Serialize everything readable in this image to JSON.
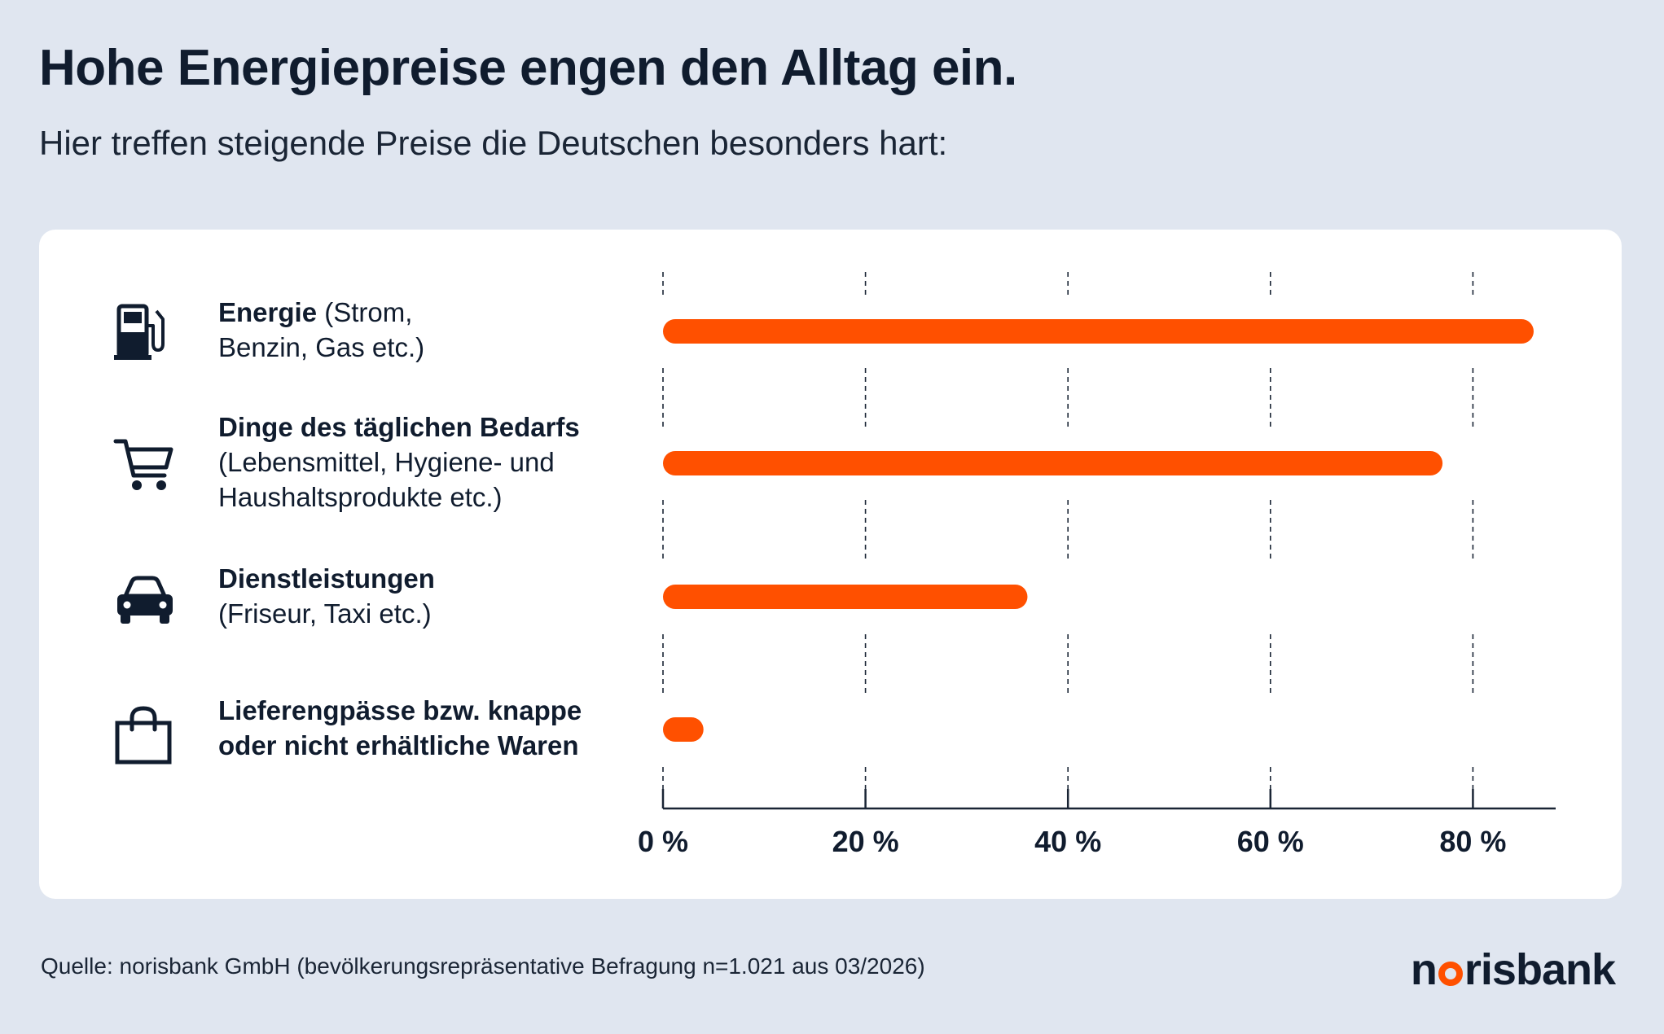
{
  "header": {
    "title": "Hohe Energiepreise engen den Alltag ein.",
    "subtitle": "Hier treffen steigende Preise die Deutschen besonders hart:"
  },
  "categories": [
    {
      "icon": "fuel-pump-icon",
      "bold": "Energie",
      "rest": " (Strom,",
      "line2": "Benzin, Gas etc.)",
      "line3": ""
    },
    {
      "icon": "shopping-cart-icon",
      "bold": "Dinge des täglichen Bedarfs",
      "rest": "",
      "line2": "(Lebensmittel, Hygiene- und",
      "line3": "Haushaltsprodukte etc.)"
    },
    {
      "icon": "car-icon",
      "bold": "Dienstleistungen",
      "rest": "",
      "line2": "(Friseur, Taxi etc.)",
      "line3": ""
    },
    {
      "icon": "shopping-bag-icon",
      "bold": "Lieferengpässe bzw. knappe",
      "rest": "",
      "line2": "oder nicht erhältliche Waren",
      "line3": ""
    }
  ],
  "chart_data": {
    "type": "bar",
    "orientation": "horizontal",
    "categories": [
      "Energie (Strom, Benzin, Gas etc.)",
      "Dinge des täglichen Bedarfs (Lebensmittel, Hygiene- und Haushaltsprodukte etc.)",
      "Dienstleistungen (Friseur, Taxi etc.)",
      "Lieferengpässe bzw. knappe oder nicht erhältliche Waren"
    ],
    "values": [
      86,
      77,
      36,
      4
    ],
    "xlim": [
      0,
      88
    ],
    "ticks": [
      0,
      20,
      40,
      60,
      80
    ],
    "tick_labels": [
      "0 %",
      "20 %",
      "40 %",
      "60 %",
      "80 %"
    ],
    "bar_color": "#ff5000",
    "grid": "dashed-vertical",
    "legend": "none"
  },
  "footer": {
    "source": "Quelle: norisbank GmbH (bevölkerungsrepräsentative Befragung n=1.021 aus 03/2026)",
    "logo_left": "n",
    "logo_right": "risbank"
  }
}
